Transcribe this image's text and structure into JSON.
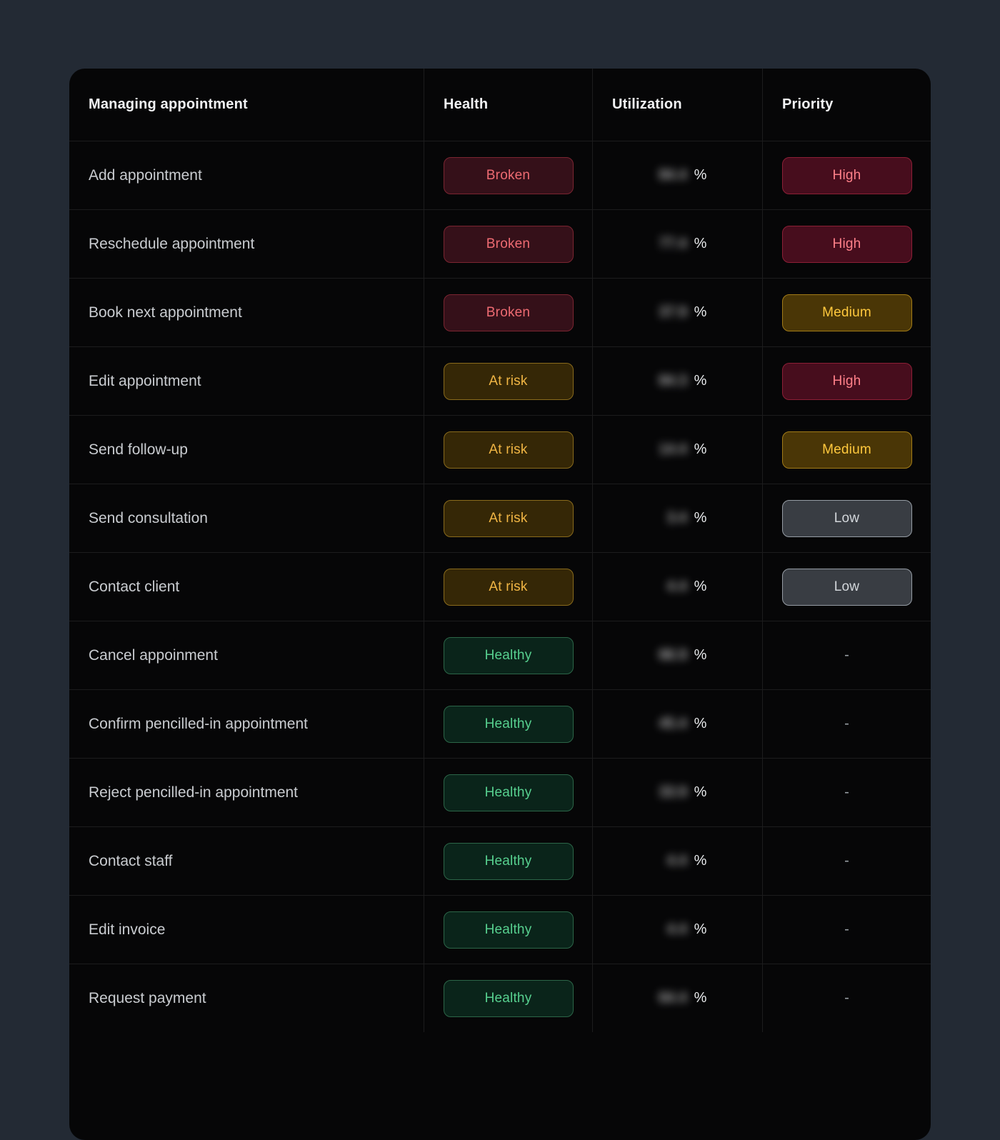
{
  "table": {
    "columns": [
      {
        "label": "Managing appointment"
      },
      {
        "label": "Health"
      },
      {
        "label": "Utilization"
      },
      {
        "label": "Priority"
      }
    ],
    "unit": "%",
    "rows": [
      {
        "task": "Add appointment",
        "health": "Broken",
        "utilization": "84.4",
        "priority": "High"
      },
      {
        "task": "Reschedule appointment",
        "health": "Broken",
        "utilization": "77.4",
        "priority": "High"
      },
      {
        "task": "Book next appointment",
        "health": "Broken",
        "utilization": "37.9",
        "priority": "Medium"
      },
      {
        "task": "Edit appointment",
        "health": "At risk",
        "utilization": "84.3",
        "priority": "High"
      },
      {
        "task": "Send follow-up",
        "health": "At risk",
        "utilization": "14.4",
        "priority": "Medium"
      },
      {
        "task": "Send consultation",
        "health": "At risk",
        "utilization": "3.4",
        "priority": "Low"
      },
      {
        "task": "Contact client",
        "health": "At risk",
        "utilization": "4.4",
        "priority": "Low"
      },
      {
        "task": "Cancel appoinment",
        "health": "Healthy",
        "utilization": "66.9",
        "priority": "-"
      },
      {
        "task": "Confirm pencilled-in appointment",
        "health": "Healthy",
        "utilization": "45.4",
        "priority": "-"
      },
      {
        "task": "Reject pencilled-in appointment",
        "health": "Healthy",
        "utilization": "33.9",
        "priority": "-"
      },
      {
        "task": "Contact staff",
        "health": "Healthy",
        "utilization": "4.4",
        "priority": "-"
      },
      {
        "task": "Edit invoice",
        "health": "Healthy",
        "utilization": "4.4",
        "priority": "-"
      },
      {
        "task": "Request payment",
        "health": "Healthy",
        "utilization": "64.4",
        "priority": "-"
      }
    ]
  },
  "colors": {
    "page_bg": "#232a34",
    "card_bg": "#060607",
    "broken_text": "#ee6b72",
    "at_risk_text": "#f0b544",
    "healthy_text": "#57d08f",
    "high_text": "#ff8089",
    "medium_text": "#ffc83d",
    "low_text": "#d3d7db"
  }
}
